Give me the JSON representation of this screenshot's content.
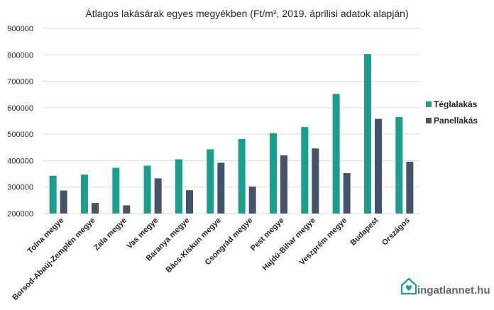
{
  "chart_data": {
    "type": "bar",
    "title": "Átlagos lakásárak egyes megyékben (Ft/m², 2019. áprilisi adatok alapján)",
    "categories": [
      "Tolna megye",
      "Borsod-Abaúj-Zemplén megye",
      "Zala megye",
      "Vas megye",
      "Baranya megye",
      "Bács-Kiskun megye",
      "Csongrád megye",
      "Pest megye",
      "Hajdú-Bihar megye",
      "Veszprém megye",
      "Budapest",
      "Országos"
    ],
    "series": [
      {
        "name": "Téglalakás",
        "color": "#1b9e8c",
        "values": [
          343000,
          347000,
          373000,
          381000,
          405000,
          443000,
          482000,
          504000,
          527000,
          652000,
          803000,
          565000
        ]
      },
      {
        "name": "Panellakás",
        "color": "#44546a",
        "values": [
          287000,
          240000,
          231000,
          333000,
          288000,
          392000,
          302000,
          420000,
          446000,
          353000,
          558000,
          396000
        ]
      }
    ],
    "ylim": [
      200000,
      900000
    ],
    "yticks": [
      "200000",
      "300000",
      "400000",
      "500000",
      "600000",
      "700000",
      "800000",
      "900000"
    ],
    "grid": true,
    "legend": "right"
  },
  "logo": {
    "text": "ingatlannet.hu",
    "color": "#1b9e8c"
  }
}
